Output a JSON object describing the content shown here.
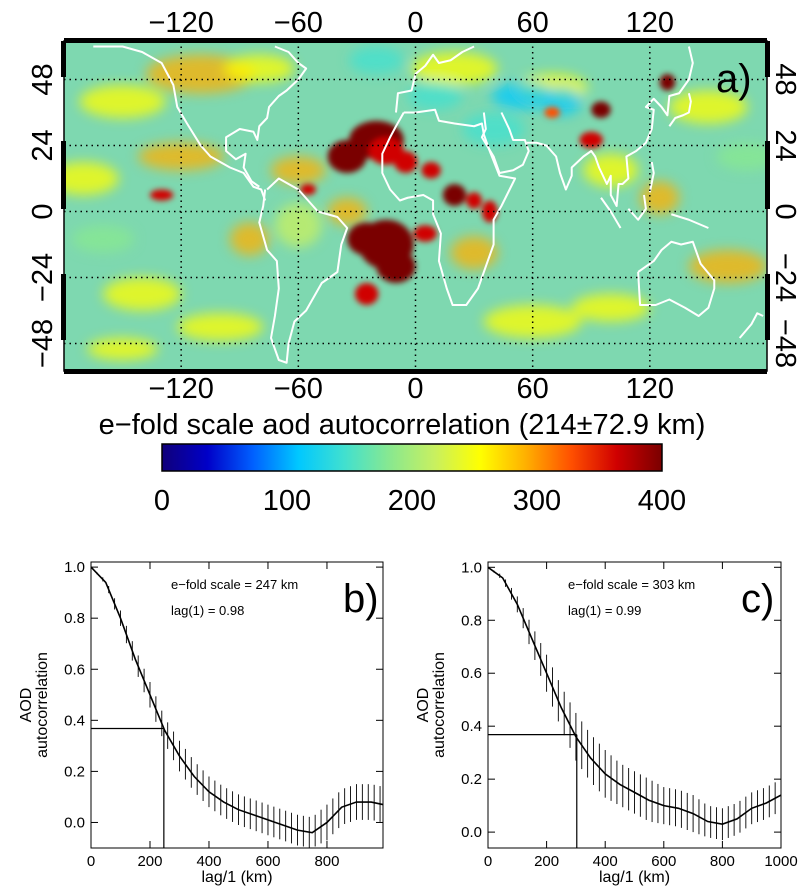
{
  "map": {
    "panel_label": "a)",
    "lon_ticks": [
      "−120",
      "−60",
      "0",
      "60",
      "120"
    ],
    "lon_values": [
      -120,
      -60,
      0,
      60,
      120
    ],
    "lat_ticks": [
      "48",
      "24",
      "0",
      "−24",
      "−48"
    ],
    "lat_values": [
      48,
      24,
      0,
      -24,
      -48
    ],
    "title": "e−fold scale aod autocorrelation (214±72.9 km)",
    "colorbar_ticks": [
      "0",
      "100",
      "200",
      "300",
      "400"
    ],
    "colorbar_values": [
      0,
      100,
      200,
      300,
      400
    ],
    "colormap": [
      "#10007a",
      "#0000c8",
      "#0060ff",
      "#00c8ff",
      "#40e0d0",
      "#88e890",
      "#c8f060",
      "#ffff00",
      "#ffb000",
      "#ff5000",
      "#d00000",
      "#7a0000"
    ],
    "background_color": "#7ed8b0",
    "coastline_color": "#ffffff",
    "hotspots_color": "#8b0000"
  },
  "chart_data": [
    {
      "type": "line",
      "panel_label": "b)",
      "ylabel_line1": "AOD",
      "ylabel_line2": "autocorrelation",
      "xlabel": "lag/1 (km)",
      "annotation_1": "e−fold scale = 247 km",
      "annotation_2": "lag(1) = 0.98",
      "xlim": [
        0,
        990
      ],
      "ylim": [
        -0.1,
        1.02
      ],
      "x_ticks": [
        "0",
        "200",
        "400",
        "600",
        "800"
      ],
      "x_tick_values": [
        0,
        200,
        400,
        600,
        800
      ],
      "y_ticks": [
        "1.0",
        "0.8",
        "0.6",
        "0.4",
        "0.2",
        "0.0"
      ],
      "y_tick_values": [
        1.0,
        0.8,
        0.6,
        0.4,
        0.2,
        0.0
      ],
      "efold_x": 247,
      "efold_y": 0.368,
      "x": [
        0,
        50,
        100,
        150,
        200,
        250,
        300,
        350,
        400,
        450,
        500,
        550,
        600,
        650,
        700,
        750,
        800,
        850,
        900,
        950,
        990
      ],
      "y": [
        1.0,
        0.94,
        0.8,
        0.64,
        0.5,
        0.36,
        0.26,
        0.18,
        0.12,
        0.08,
        0.05,
        0.03,
        0.01,
        -0.01,
        -0.03,
        -0.04,
        0.0,
        0.06,
        0.08,
        0.08,
        0.07
      ],
      "err": [
        0.0,
        0.01,
        0.03,
        0.04,
        0.05,
        0.05,
        0.06,
        0.06,
        0.06,
        0.06,
        0.06,
        0.06,
        0.06,
        0.06,
        0.06,
        0.06,
        0.07,
        0.07,
        0.07,
        0.07,
        0.07
      ]
    },
    {
      "type": "line",
      "panel_label": "c)",
      "ylabel_line1": "AOD",
      "ylabel_line2": "autocorrelation",
      "xlabel": "lag/1 (km)",
      "annotation_1": "e−fold scale = 303 km",
      "annotation_2": "lag(1) = 0.99",
      "xlim": [
        0,
        1000
      ],
      "ylim": [
        -0.06,
        1.02
      ],
      "x_ticks": [
        "0",
        "200",
        "400",
        "600",
        "800",
        "1000"
      ],
      "x_tick_values": [
        0,
        200,
        400,
        600,
        800,
        1000
      ],
      "y_ticks": [
        "1.0",
        "0.8",
        "0.6",
        "0.4",
        "0.2",
        "0.0"
      ],
      "y_tick_values": [
        1.0,
        0.8,
        0.6,
        0.4,
        0.2,
        0.0
      ],
      "efold_x": 303,
      "efold_y": 0.368,
      "x": [
        0,
        50,
        100,
        150,
        200,
        250,
        300,
        350,
        400,
        450,
        500,
        550,
        600,
        650,
        700,
        750,
        800,
        850,
        900,
        950,
        1000
      ],
      "y": [
        1.0,
        0.96,
        0.86,
        0.73,
        0.6,
        0.47,
        0.36,
        0.28,
        0.22,
        0.18,
        0.15,
        0.12,
        0.1,
        0.09,
        0.07,
        0.04,
        0.03,
        0.05,
        0.09,
        0.11,
        0.14
      ],
      "err": [
        0.0,
        0.01,
        0.03,
        0.05,
        0.07,
        0.08,
        0.09,
        0.09,
        0.09,
        0.08,
        0.08,
        0.08,
        0.07,
        0.07,
        0.07,
        0.06,
        0.06,
        0.06,
        0.06,
        0.06,
        0.06
      ]
    }
  ]
}
